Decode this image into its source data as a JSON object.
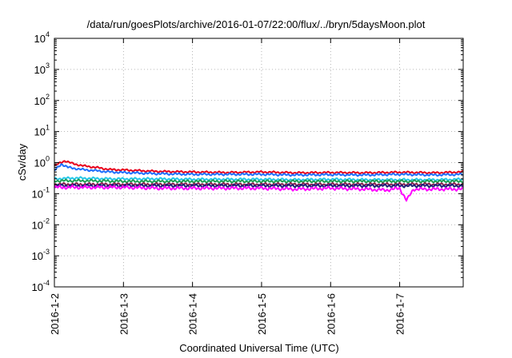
{
  "chart_data": {
    "type": "line",
    "title": "/data/run/goesPlots/archive/2016-01-07/22:00/flux/../bryn/5daysMoon.plot",
    "xlabel": "Coordinated Universal Time (UTC)",
    "ylabel": "cSv/day",
    "yscale": "log",
    "grid": true,
    "x_range": [
      0,
      5.92
    ],
    "x_tick_values": [
      0,
      1,
      2,
      3,
      4,
      5
    ],
    "x_tick_labels": [
      "2016-1-2",
      "2016-1-3",
      "2016-1-4",
      "2016-1-5",
      "2016-1-6",
      "2016-1-7"
    ],
    "y_tick_values": [
      0.0001,
      0.001,
      0.01,
      0.1,
      1,
      10,
      100,
      1000,
      10000
    ],
    "y_tick_labels": [
      {
        "base": "10",
        "exp": "-4"
      },
      {
        "base": "10",
        "exp": "-3"
      },
      {
        "base": "10",
        "exp": "-2"
      },
      {
        "base": "10",
        "exp": "-1"
      },
      {
        "base": "10",
        "exp": "0"
      },
      {
        "base": "10",
        "exp": "1"
      },
      {
        "base": "10",
        "exp": "2"
      },
      {
        "base": "10",
        "exp": "3"
      },
      {
        "base": "10",
        "exp": "4"
      }
    ],
    "ylim": [
      0.0001,
      10000
    ],
    "series": [
      {
        "color": "#e8001c",
        "x": [
          0,
          0.15,
          0.25,
          0.4,
          0.6,
          0.8,
          1.0,
          1.5,
          2.0,
          2.5,
          3.0,
          3.5,
          4.0,
          4.5,
          5.0,
          5.5,
          5.92
        ],
        "y": [
          0.8,
          1.15,
          0.95,
          0.8,
          0.7,
          0.6,
          0.58,
          0.52,
          0.5,
          0.48,
          0.5,
          0.47,
          0.48,
          0.47,
          0.49,
          0.47,
          0.5
        ]
      },
      {
        "color": "#1f6fff",
        "x": [
          0,
          0.1,
          0.2,
          0.4,
          0.6,
          0.8,
          1.0,
          1.5,
          2.0,
          2.5,
          3.0,
          3.5,
          4.0,
          4.5,
          5.0,
          5.5,
          5.92
        ],
        "y": [
          0.55,
          0.9,
          0.7,
          0.6,
          0.55,
          0.5,
          0.48,
          0.44,
          0.42,
          0.42,
          0.42,
          0.4,
          0.41,
          0.4,
          0.42,
          0.4,
          0.42
        ]
      },
      {
        "color": "#25c8e8",
        "x": [
          0,
          0.3,
          0.8,
          1.5,
          2.0,
          2.5,
          3.0,
          3.5,
          4.0,
          4.5,
          5.0,
          5.5,
          5.92
        ],
        "y": [
          0.3,
          0.32,
          0.3,
          0.3,
          0.29,
          0.29,
          0.29,
          0.28,
          0.29,
          0.28,
          0.28,
          0.28,
          0.29
        ]
      },
      {
        "color": "#1e9e54",
        "x": [
          0,
          0.5,
          1.0,
          2.0,
          3.0,
          4.0,
          5.0,
          5.92
        ],
        "y": [
          0.26,
          0.26,
          0.25,
          0.25,
          0.25,
          0.25,
          0.25,
          0.25
        ]
      },
      {
        "color": "#8a1f4a",
        "x": [
          0,
          0.5,
          1.0,
          2.0,
          3.0,
          4.0,
          5.0,
          5.92
        ],
        "y": [
          0.2,
          0.2,
          0.2,
          0.2,
          0.2,
          0.2,
          0.2,
          0.2
        ]
      },
      {
        "color": "#20207a",
        "x": [
          0,
          0.5,
          1.0,
          2.0,
          3.0,
          4.0,
          5.0,
          5.92
        ],
        "y": [
          0.18,
          0.18,
          0.18,
          0.18,
          0.18,
          0.18,
          0.18,
          0.18
        ]
      },
      {
        "color": "#ff00ff",
        "x": [
          0,
          0.5,
          1.0,
          1.5,
          2.0,
          2.5,
          3.0,
          3.5,
          4.0,
          4.5,
          4.8,
          5.0,
          5.1,
          5.2,
          5.5,
          5.92
        ],
        "y": [
          0.16,
          0.16,
          0.16,
          0.15,
          0.15,
          0.15,
          0.15,
          0.14,
          0.15,
          0.14,
          0.13,
          0.15,
          0.06,
          0.14,
          0.14,
          0.14
        ]
      }
    ]
  }
}
